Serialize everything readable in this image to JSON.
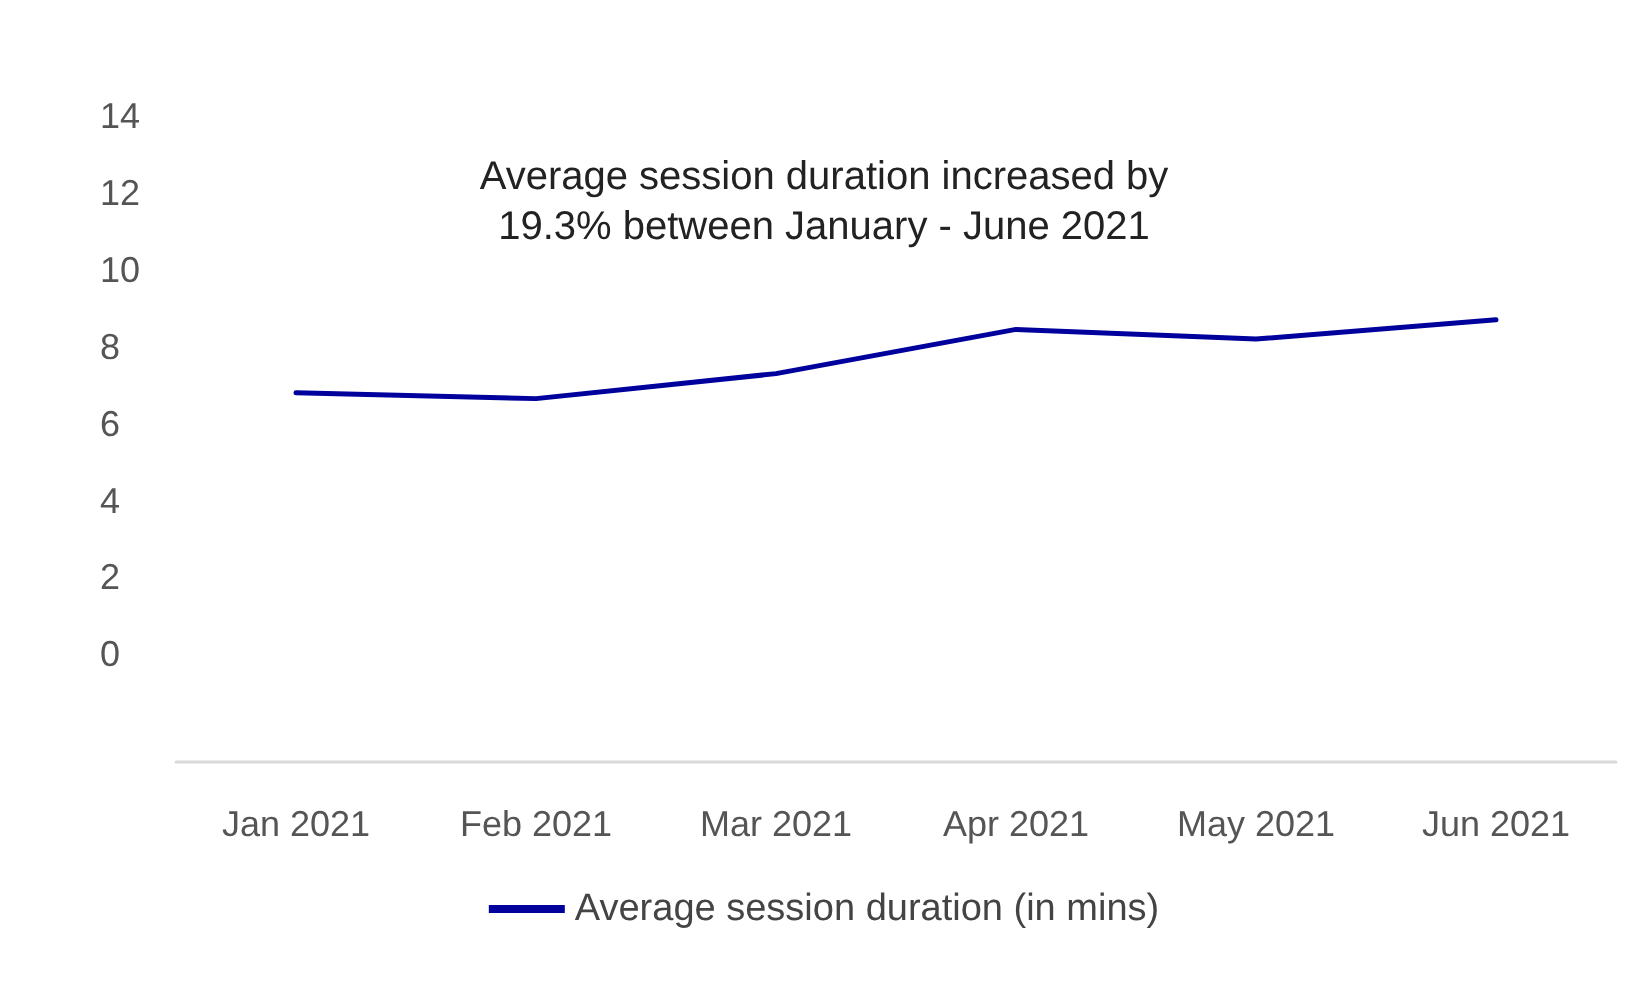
{
  "chart_data": {
    "type": "line",
    "categories": [
      "Jan 2021",
      "Feb 2021",
      "Mar 2021",
      "Apr 2021",
      "May 2021",
      "Jun 2021"
    ],
    "series": [
      {
        "name": "Average session duration (in mins)",
        "color": "#00009c",
        "values": [
          6.8,
          6.65,
          7.3,
          8.45,
          8.2,
          8.7
        ]
      }
    ],
    "ylim": [
      -2.8,
      14
    ],
    "yticks": [
      0,
      2,
      4,
      6,
      8,
      10,
      12,
      14
    ],
    "annotations": [
      "Average session duration increased by\n19.3% between January - June 2021"
    ],
    "grid": false,
    "legend": "bottom",
    "marker": "none",
    "line_style": "solid"
  }
}
